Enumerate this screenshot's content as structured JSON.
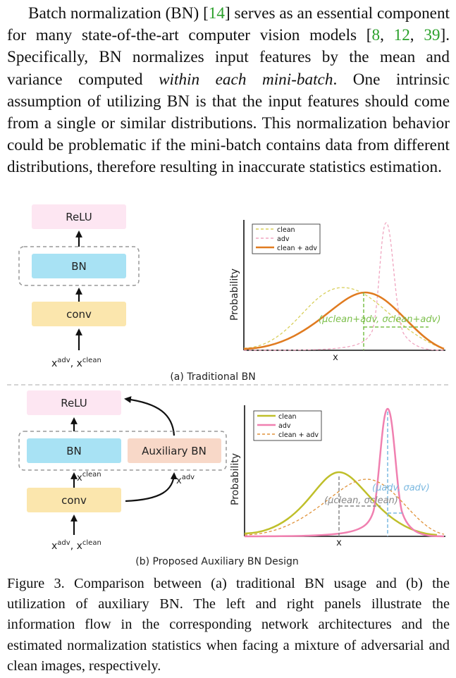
{
  "paragraph": {
    "text_1": "Batch normalization (BN) [",
    "ref_1": "14",
    "text_2": "] serves as an essential component for many state-of-the-art computer vision models [",
    "ref_2": "8",
    "sep_1": ", ",
    "ref_3": "12",
    "sep_2": ", ",
    "ref_4": "39",
    "text_3": "]. Specifically, BN normalizes input features by the mean and variance computed ",
    "emph": "within each mini-batch",
    "text_4": ". One intrinsic assumption of utilizing BN is that the input features should come from a single or similar distributions. This normalization behavior could be problematic if the mini-batch contains data from different distributions, therefore resulting in inaccurate statistics estimation."
  },
  "figure": {
    "panel_a": {
      "relu_label": "ReLU",
      "bn_label": "BN",
      "conv_label": "conv",
      "input_base_1": "x",
      "input_sup_1": "adv",
      "input_sep": ", ",
      "input_base_2": "x",
      "input_sup_2": "clean",
      "subcaption": "(a) Traditional BN",
      "plot": {
        "ylabel": "Probability",
        "xlabel": "x",
        "legend": [
          "clean",
          "adv",
          "clean + adv"
        ],
        "stat_annotation": "(μclean+adv, σclean+adv)"
      }
    },
    "panel_b": {
      "relu_label": "ReLU",
      "bn_label": "BN",
      "aux_bn_label": "Auxiliary BN",
      "conv_label": "conv",
      "clean_branch_base": "x",
      "clean_branch_sup": "clean",
      "adv_branch_base": "x",
      "adv_branch_sup": "adv",
      "input_base_1": "x",
      "input_sup_1": "adv",
      "input_sep": ", ",
      "input_base_2": "x",
      "input_sup_2": "clean",
      "subcaption": "(b) Proposed Auxiliary BN Design",
      "plot": {
        "ylabel": "Probability",
        "xlabel": "x",
        "legend": [
          "clean",
          "adv",
          "clean + adv"
        ],
        "adv_annotation": "(μadv, σadv)",
        "clean_annotation": "(μclean, σclean)"
      }
    }
  },
  "caption": {
    "text": "Figure 3. Comparison between (a) traditional BN usage and (b) the utilization of auxiliary BN. The left and right panels illustrate the information flow in the corresponding network architectures and the estimated normalization statistics when facing a mixture of adversarial and clean images, respectively."
  },
  "colors": {
    "relu_box": "#fde6f2",
    "bn_box": "#a8e2f4",
    "conv_box": "#fbe6ad",
    "aux_bn_box": "#f8d8c8",
    "citation": "#2aa02a",
    "curve_clean_a": "#d8cf5a",
    "curve_adv_a": "#f0a6c0",
    "curve_mix_a": "#e07b20",
    "stat_green": "#7bbf4a",
    "curve_clean_b": "#bfbf2a",
    "curve_adv_b": "#f080b0",
    "curve_mix_b": "#e0923a",
    "stat_blue": "#7ab8e0",
    "stat_gray": "#888888"
  }
}
